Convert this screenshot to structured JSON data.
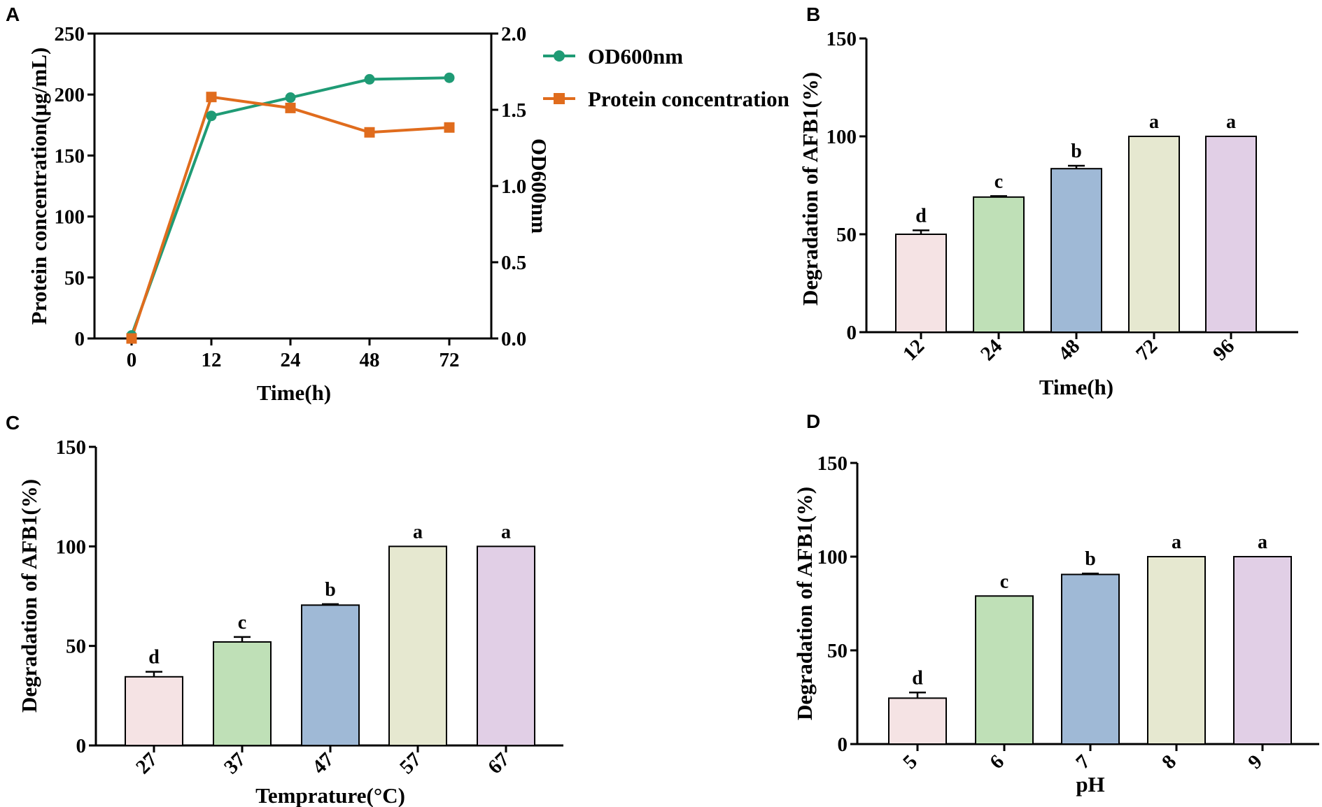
{
  "colors": {
    "od600": "#1f9b75",
    "protein": "#e06c1d",
    "bars": [
      "#f5e3e4",
      "#bfe0b7",
      "#9fb9d6",
      "#e6e8d0",
      "#e1cfe6"
    ]
  },
  "chart_data": [
    {
      "panel": "A",
      "type": "line",
      "x": [
        "0",
        "12",
        "24",
        "48",
        "72"
      ],
      "xlabel": "Time(h)",
      "ylabel": "Protein concentration(μg/mL)",
      "ylim": [
        0,
        250
      ],
      "yticks": [
        "0",
        "50",
        "100",
        "150",
        "200",
        "250"
      ],
      "y2label": "OD600nm",
      "y2lim": [
        0,
        2.0
      ],
      "y2ticks": [
        "0.0",
        "0.5",
        "1.0",
        "1.5",
        "2.0"
      ],
      "legend_position": "top-right (outside plot)",
      "series": [
        {
          "name": "OD600nm",
          "axis": "right",
          "marker": "circle",
          "values": [
            0.02,
            1.46,
            1.58,
            1.7,
            1.71
          ]
        },
        {
          "name": "Protein concentration",
          "axis": "left",
          "marker": "square",
          "values": [
            0,
            198,
            189,
            169,
            173
          ]
        }
      ]
    },
    {
      "panel": "B",
      "type": "bar",
      "categories": [
        "12",
        "24",
        "48",
        "72",
        "96"
      ],
      "values": [
        50,
        69,
        83.5,
        100,
        100
      ],
      "errors": [
        2,
        0.5,
        1.5,
        0,
        0
      ],
      "significance": [
        "d",
        "c",
        "b",
        "a",
        "a"
      ],
      "xlabel": "Time(h)",
      "ylabel": "Degradation of AFB1(%)",
      "ylim": [
        0,
        150
      ],
      "yticks": [
        "0",
        "50",
        "100",
        "150"
      ]
    },
    {
      "panel": "C",
      "type": "bar",
      "categories": [
        "27",
        "37",
        "47",
        "57",
        "67"
      ],
      "values": [
        34.5,
        52,
        70.5,
        100,
        100
      ],
      "errors": [
        2.5,
        2.5,
        0.5,
        0,
        0
      ],
      "significance": [
        "d",
        "c",
        "b",
        "a",
        "a"
      ],
      "xlabel": "Temprature(°C)",
      "ylabel": "Degradation of AFB1(%)",
      "ylim": [
        0,
        150
      ],
      "yticks": [
        "0",
        "50",
        "100",
        "150"
      ]
    },
    {
      "panel": "D",
      "type": "bar",
      "categories": [
        "5",
        "6",
        "7",
        "8",
        "9"
      ],
      "values": [
        24.5,
        79,
        90.5,
        100,
        100
      ],
      "errors": [
        3,
        0,
        0.5,
        0,
        0
      ],
      "significance": [
        "d",
        "c",
        "b",
        "a",
        "a"
      ],
      "xlabel": "pH",
      "ylabel": "Degradation of AFB1(%)",
      "ylim": [
        0,
        150
      ],
      "yticks": [
        "0",
        "50",
        "100",
        "150"
      ]
    }
  ]
}
